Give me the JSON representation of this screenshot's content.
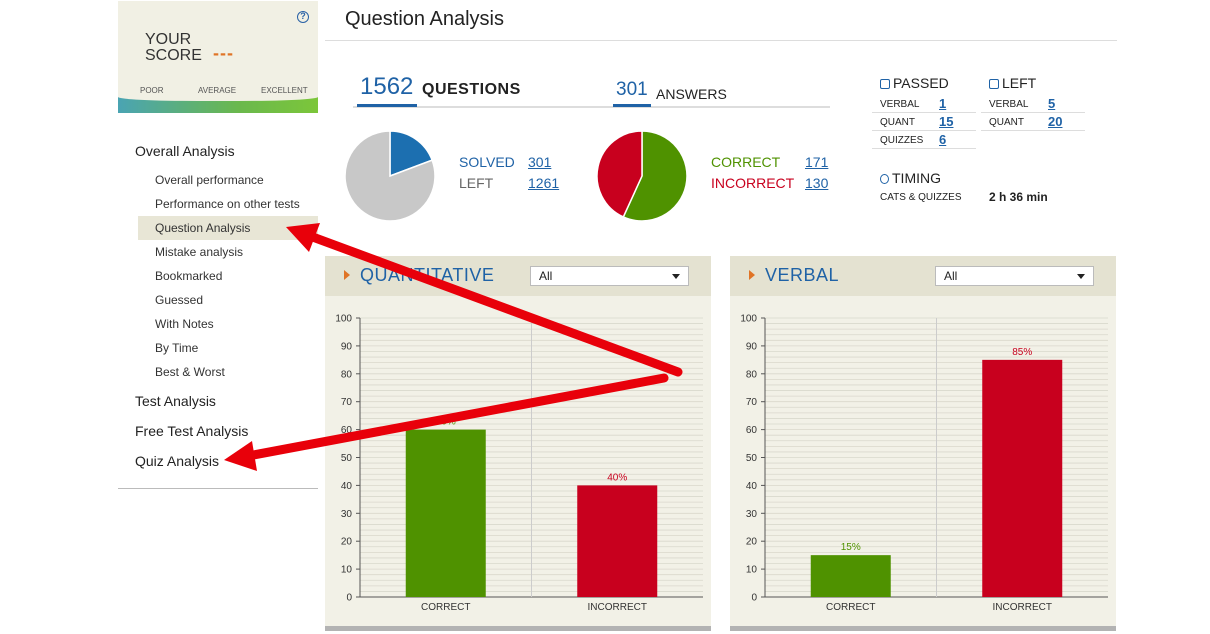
{
  "score_box": {
    "label_line1": "YOUR",
    "label_line2": "SCORE",
    "value": "---",
    "help_icon": "question-icon",
    "scale": [
      "POOR",
      "AVERAGE",
      "EXCELLENT"
    ]
  },
  "sidebar": {
    "groups": [
      {
        "label": "Overall Analysis"
      },
      {
        "label": "Test Analysis"
      },
      {
        "label": "Free Test Analysis"
      },
      {
        "label": "Quiz Analysis"
      }
    ],
    "subitems": [
      {
        "label": "Overall performance"
      },
      {
        "label": "Performance on other tests"
      },
      {
        "label": "Question Analysis",
        "active": true
      },
      {
        "label": "Mistake analysis"
      },
      {
        "label": "Bookmarked"
      },
      {
        "label": "Guessed"
      },
      {
        "label": "With Notes"
      },
      {
        "label": "By Time"
      },
      {
        "label": "Best & Worst"
      }
    ]
  },
  "header": {
    "title": "Question Analysis"
  },
  "totals": {
    "questions_count": "1562",
    "questions_label": "QUESTIONS",
    "answers_count": "301",
    "answers_label": "ANSWERS"
  },
  "pie_solved": {
    "slices": [
      {
        "label": "SOLVED",
        "value": 301,
        "color": "#1c6fb0"
      },
      {
        "label": "LEFT",
        "value": 1261,
        "color": "#c8c8c8"
      }
    ],
    "solved_label": "SOLVED",
    "solved_value": "301",
    "left_label": "LEFT",
    "left_value": "1261"
  },
  "pie_correct": {
    "slices": [
      {
        "label": "CORRECT",
        "value": 171,
        "color": "#4f9200"
      },
      {
        "label": "INCORRECT",
        "value": 130,
        "color": "#c8001e"
      }
    ],
    "correct_label": "CORRECT",
    "correct_value": "171",
    "incorrect_label": "INCORRECT",
    "incorrect_value": "130"
  },
  "passed": {
    "title": "PASSED",
    "rows": [
      {
        "key": "VERBAL",
        "value": "1"
      },
      {
        "key": "QUANT",
        "value": "15"
      },
      {
        "key": "QUIZZES",
        "value": "6"
      }
    ]
  },
  "left": {
    "title": "LEFT",
    "rows": [
      {
        "key": "VERBAL",
        "value": "5"
      },
      {
        "key": "QUANT",
        "value": "20"
      }
    ]
  },
  "timing": {
    "title": "TIMING",
    "key": "CATS & QUIZZES",
    "value": "2 h 36 min"
  },
  "panels": {
    "quant": {
      "title": "QUANTITATIVE",
      "select": "All"
    },
    "verbal": {
      "title": "VERBAL",
      "select": "All"
    }
  },
  "colors": {
    "accent_blue": "#1f62a6",
    "correct_green": "#4f9200",
    "incorrect_red": "#c8001e",
    "arrow_red": "#e8000a"
  },
  "chart_data": [
    {
      "type": "bar",
      "categories": [
        "CORRECT",
        "INCORRECT"
      ],
      "values": [
        60,
        40
      ],
      "data_labels": [
        "60%",
        "40%"
      ],
      "colors": [
        "#4f9200",
        "#c8001e"
      ],
      "ylim": [
        0,
        100
      ],
      "yticks": [
        0,
        10,
        20,
        30,
        40,
        50,
        60,
        70,
        80,
        90,
        100
      ],
      "title": "",
      "xlabel": "",
      "ylabel": "",
      "grid": true
    },
    {
      "type": "bar",
      "categories": [
        "CORRECT",
        "INCORRECT"
      ],
      "values": [
        15,
        85
      ],
      "data_labels": [
        "15%",
        "85%"
      ],
      "colors": [
        "#4f9200",
        "#c8001e"
      ],
      "ylim": [
        0,
        100
      ],
      "yticks": [
        0,
        10,
        20,
        30,
        40,
        50,
        60,
        70,
        80,
        90,
        100
      ],
      "title": "",
      "xlabel": "",
      "ylabel": "",
      "grid": true
    }
  ]
}
